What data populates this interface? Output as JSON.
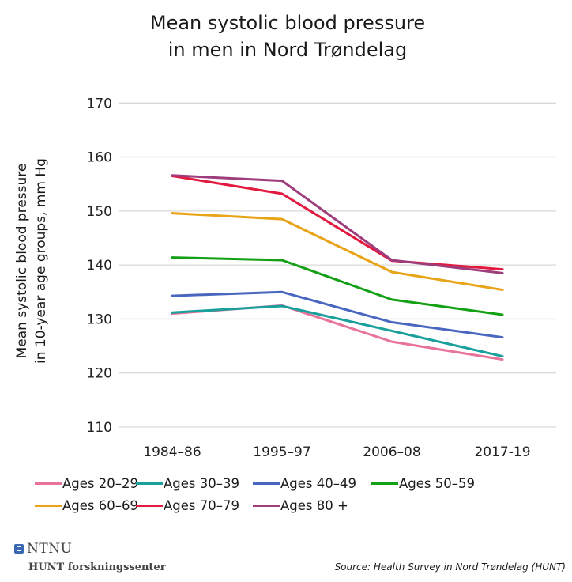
{
  "chart_data": {
    "type": "line",
    "title": "Mean systolic blood pressure in men in Nord Trøndelag",
    "title_lines": [
      "Mean systolic blood pressure",
      "in men in Nord Trøndelag"
    ],
    "xlabel": "",
    "ylabel": "Mean systolic blood pressure in 10-year age groups, mm Hg",
    "ylabel_lines": [
      "Mean systolic blood pressure",
      "in 10-year age groups, mm Hg"
    ],
    "categories": [
      "1984–86",
      "1995–97",
      "2006–08",
      "2017-19"
    ],
    "ylim": [
      110,
      170
    ],
    "yticks": [
      110,
      120,
      130,
      140,
      150,
      160,
      170
    ],
    "grid": true,
    "legend_position": "bottom",
    "series": [
      {
        "name": "Ages 20–29",
        "color": "#e8739a",
        "values": [
          131.0,
          132.5,
          125.8,
          122.5
        ]
      },
      {
        "name": "Ages 30–39",
        "color": "#19a09c",
        "values": [
          131.2,
          132.4,
          127.8,
          123.1
        ]
      },
      {
        "name": "Ages 40–49",
        "color": "#4a67c0",
        "values": [
          134.3,
          135.0,
          129.4,
          126.6
        ]
      },
      {
        "name": "Ages 50–59",
        "color": "#13a015",
        "values": [
          141.4,
          140.9,
          133.6,
          130.8
        ]
      },
      {
        "name": "Ages 60–69",
        "color": "#e8a316",
        "values": [
          149.6,
          148.5,
          138.7,
          135.4
        ]
      },
      {
        "name": "Ages 70–79",
        "color": "#e21a40",
        "values": [
          156.5,
          153.2,
          140.8,
          139.2
        ]
      },
      {
        "name": "Ages 80 +",
        "color": "#9e3d7c",
        "values": [
          156.6,
          155.6,
          140.9,
          138.5
        ]
      }
    ]
  },
  "footer": {
    "logo_text": "NTNU",
    "institution": "HUNT forskningssenter",
    "source": "Source: Health Survey in Nord Trøndelag (HUNT)"
  }
}
